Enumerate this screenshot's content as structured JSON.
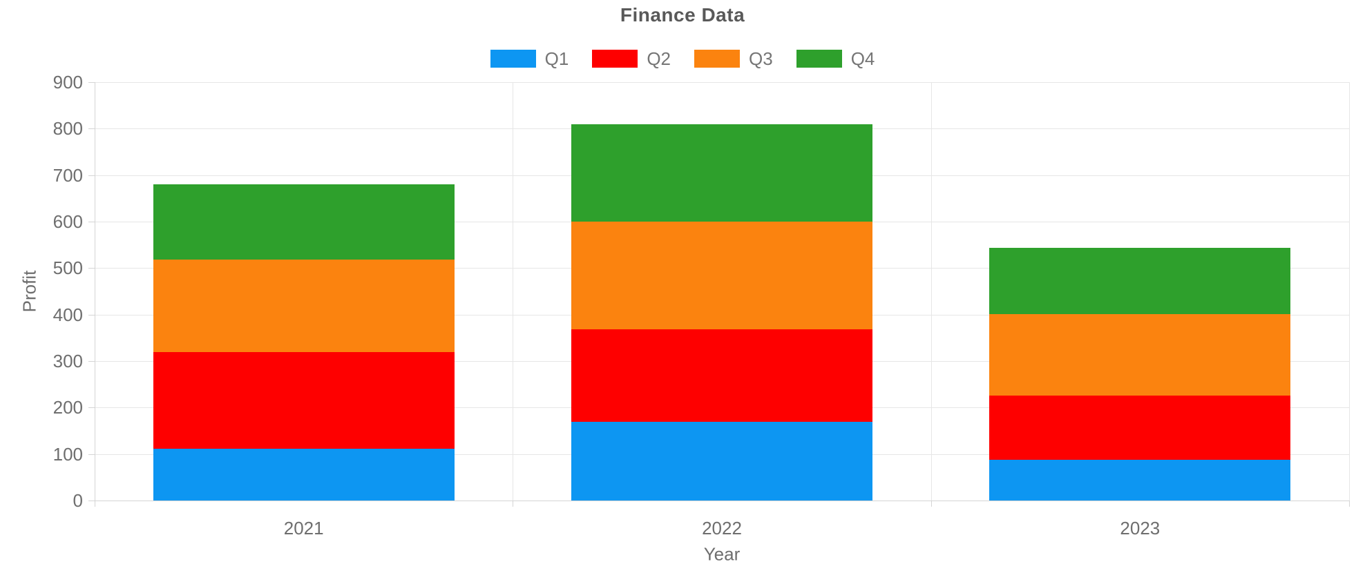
{
  "chart_data": {
    "type": "bar",
    "stacked": true,
    "title": "Finance Data",
    "xlabel": "Year",
    "ylabel": "Profit",
    "categories": [
      "2021",
      "2022",
      "2023"
    ],
    "series": [
      {
        "name": "Q1",
        "color": "#0d96f2",
        "values": [
          112,
          170,
          87
        ]
      },
      {
        "name": "Q2",
        "color": "#fe0000",
        "values": [
          208,
          198,
          139
        ]
      },
      {
        "name": "Q3",
        "color": "#fb830f",
        "values": [
          198,
          232,
          175
        ]
      },
      {
        "name": "Q4",
        "color": "#2ea02c",
        "values": [
          162,
          210,
          143
        ]
      }
    ],
    "stack_totals": [
      680,
      810,
      544
    ],
    "ylim": [
      0,
      900
    ],
    "y_ticks": [
      0,
      100,
      200,
      300,
      400,
      500,
      600,
      700,
      800,
      900
    ],
    "grid": true,
    "legend_position": "top"
  },
  "colors": {
    "grid": "#e6e6e6",
    "axis": "#d4d4d4",
    "tick_text": "#6e6e6e",
    "title_text": "#595959",
    "legend_text": "#757575",
    "background": "#ffffff"
  }
}
